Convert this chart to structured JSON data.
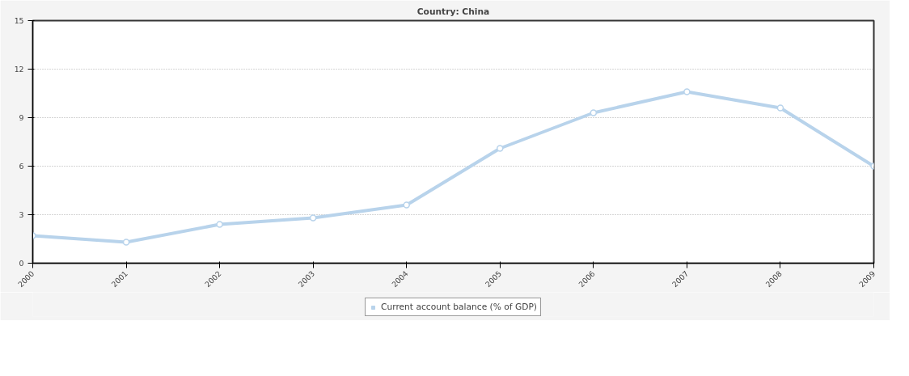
{
  "chart_data": {
    "type": "line",
    "title": "Country: China",
    "x": [
      2000,
      2001,
      2002,
      2003,
      2004,
      2005,
      2006,
      2007,
      2008,
      2009
    ],
    "series": [
      {
        "name": "Current account balance (% of GDP)",
        "color": "#b8d3eb",
        "values": [
          1.7,
          1.3,
          2.4,
          2.8,
          3.6,
          7.1,
          9.3,
          10.6,
          9.6,
          6.0
        ]
      }
    ],
    "xlim": [
      2000,
      2009
    ],
    "xticks": [
      2000,
      2001,
      2002,
      2003,
      2004,
      2005,
      2006,
      2007,
      2008,
      2009
    ],
    "ylim": [
      0,
      15
    ],
    "yticks": [
      0,
      3,
      6,
      9,
      12,
      15
    ],
    "grid": "y",
    "legend": "bottom",
    "marker": "circle",
    "line_style": "solid"
  }
}
